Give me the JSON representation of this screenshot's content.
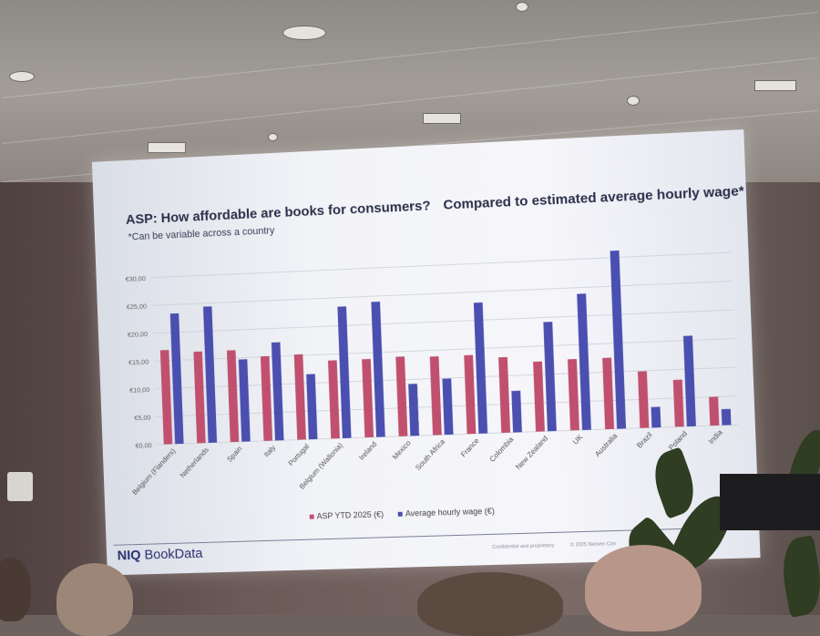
{
  "slide": {
    "title_part1": "ASP: How affordable are books for consumers?",
    "title_part2": "Compared to estimated average hourly wage*",
    "subtitle": "*Can be variable across a country",
    "brand_prefix": "NIQ",
    "brand_name": "BookData",
    "footer_left": "Confidential and proprietary",
    "footer_right": "© 2025 Nielsen Con"
  },
  "chart_data": {
    "type": "bar",
    "categories": [
      "Belgium (Flanders)",
      "Netherlands",
      "Spain",
      "Italy",
      "Portugal",
      "Belgium (Wallonia)",
      "Ireland",
      "Mexico",
      "South Africa",
      "France",
      "Colombia",
      "New Zealand",
      "UK",
      "Australia",
      "Brazil",
      "Poland",
      "India"
    ],
    "series": [
      {
        "name": "ASP YTD 2025 (€)",
        "color": "#c0506e",
        "values": [
          16.9,
          16.4,
          16.4,
          15.1,
          15.2,
          13.9,
          13.9,
          14.1,
          13.9,
          13.9,
          13.3,
          12.3,
          12.5,
          12.5,
          9.9,
          8.2,
          5.0
        ]
      },
      {
        "name": "Average hourly wage (€)",
        "color": "#4a4fb0",
        "values": [
          23.4,
          24.4,
          14.7,
          17.5,
          11.6,
          23.4,
          24.0,
          9.2,
          9.9,
          23.1,
          7.3,
          19.2,
          23.9,
          31.2,
          3.6,
          15.8,
          2.8
        ]
      }
    ],
    "yticks": [
      "€0,00",
      "€5,00",
      "€10,00",
      "€15,00",
      "€20,00",
      "€25,00",
      "€30,00"
    ],
    "ylim": [
      0,
      30
    ],
    "grid": true,
    "legend_position": "bottom"
  }
}
